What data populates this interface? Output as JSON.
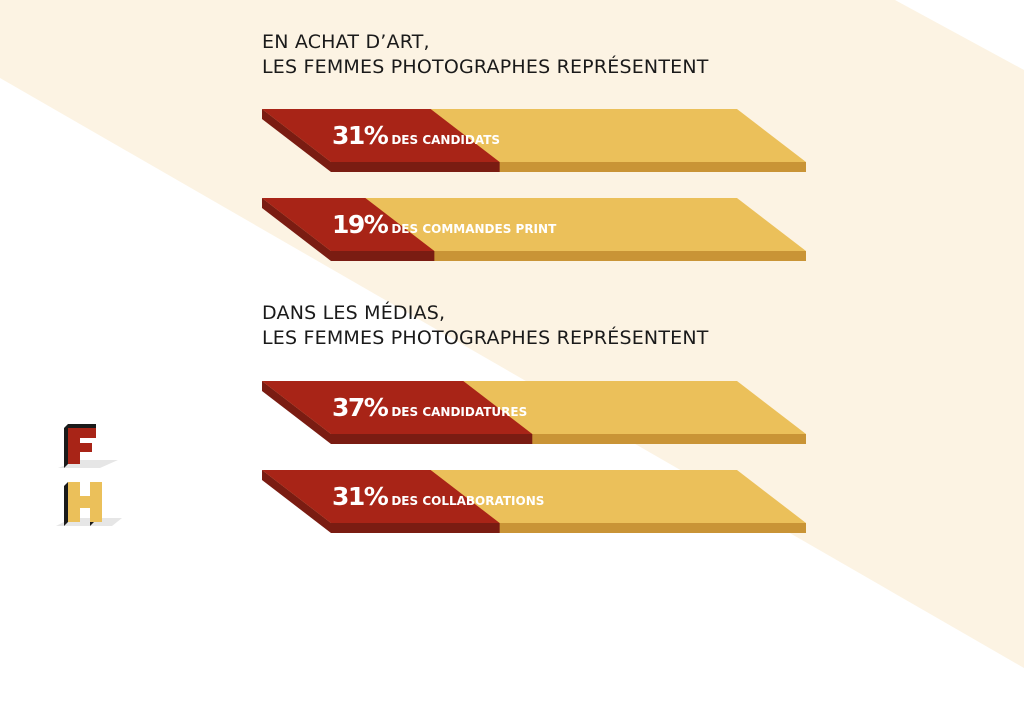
{
  "colors": {
    "background": "#ffffff",
    "band": "#fcf3e3",
    "red": "#a82417",
    "red_dark": "#7a1c12",
    "gold": "#ebc05a",
    "gold_dark": "#c99436",
    "text": "#1a1a1a"
  },
  "chart_data": {
    "type": "bar",
    "orientation": "horizontal",
    "unit": "%",
    "xlim": [
      0,
      100
    ],
    "groups": [
      {
        "heading_lines": [
          "EN ACHAT D’ART,",
          "LES FEMMES PHOTOGRAPHES REPRÉSENTENT"
        ],
        "bars": [
          {
            "value": 31,
            "value_label": "31%",
            "label": "DES CANDIDATS"
          },
          {
            "value": 19,
            "value_label": "19%",
            "label": "DES COMMANDES PRINT"
          }
        ]
      },
      {
        "heading_lines": [
          "DANS LES MÉDIAS,",
          "LES FEMMES PHOTOGRAPHES REPRÉSENTENT"
        ],
        "bars": [
          {
            "value": 37,
            "value_label": "37%",
            "label": "DES CANDIDATURES"
          },
          {
            "value": 31,
            "value_label": "31%",
            "label": "DES COLLABORATIONS"
          }
        ]
      }
    ]
  },
  "logo": {
    "letters": [
      "F",
      "H"
    ],
    "letter_colors": [
      "#a82417",
      "#ebc05a"
    ]
  }
}
